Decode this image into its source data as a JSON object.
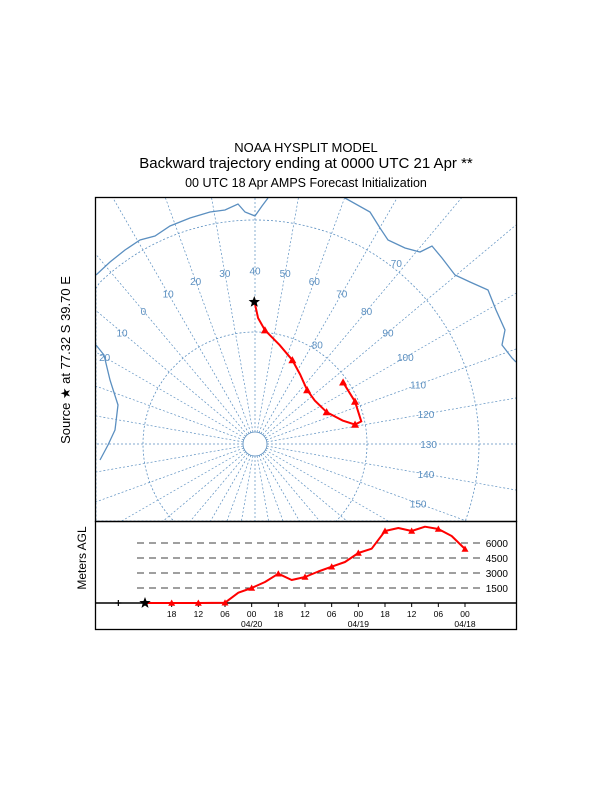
{
  "title": {
    "line1": "NOAA HYSPLIT MODEL",
    "line2": "Backward trajectory ending at 0000 UTC 21 Apr **",
    "line3": "00 UTC 18 Apr    AMPS  Forecast Initialization"
  },
  "source_label": "Source  ★  at    77.32 S   39.70 E",
  "chart_data": [
    {
      "type": "line",
      "title": "Trajectory map (south polar stereographic)",
      "colors": {
        "grid": "#5b8fc0",
        "trajectory": "#ff0000",
        "source": "#000000"
      },
      "meridian_labels": [
        {
          "lon": -20,
          "text": "20"
        },
        {
          "lon": -10,
          "text": "10"
        },
        {
          "lon": 0,
          "text": "0"
        },
        {
          "lon": 10,
          "text": "10"
        },
        {
          "lon": 20,
          "text": "20"
        },
        {
          "lon": 30,
          "text": "30"
        },
        {
          "lon": 40,
          "text": "40"
        },
        {
          "lon": 50,
          "text": "50"
        },
        {
          "lon": 60,
          "text": "60"
        },
        {
          "lon": 70,
          "text": "70"
        },
        {
          "lon": 80,
          "text": "80"
        },
        {
          "lon": 90,
          "text": "90"
        },
        {
          "lon": 100,
          "text": "100"
        },
        {
          "lon": 110,
          "text": "110"
        },
        {
          "lon": 120,
          "text": "120"
        },
        {
          "lon": 130,
          "text": "130"
        },
        {
          "lon": 140,
          "text": "140"
        },
        {
          "lon": 150,
          "text": "150"
        }
      ],
      "parallel_labels": [
        {
          "lat": -70,
          "text": "70"
        },
        {
          "lat": -80,
          "text": "80"
        }
      ],
      "source": {
        "lat": -77.32,
        "lon": 39.7
      },
      "trajectory": [
        {
          "lat": -77.1,
          "lon": 39.6
        },
        {
          "lat": -78.75,
          "lon": 41.4
        },
        {
          "lat": -79.8,
          "lon": 45
        },
        {
          "lat": -80.9,
          "lon": 54
        },
        {
          "lat": -81.8,
          "lon": 64
        },
        {
          "lat": -82.6,
          "lon": 73
        },
        {
          "lat": -83.3,
          "lon": 84
        },
        {
          "lat": -83.4,
          "lon": 94
        },
        {
          "lat": -83.0,
          "lon": 106
        },
        {
          "lat": -81.9,
          "lon": 115
        },
        {
          "lat": -80.9,
          "lon": 119
        },
        {
          "lat": -80.3,
          "lon": 118
        },
        {
          "lat": -80.3,
          "lon": 107
        },
        {
          "lat": -80.4,
          "lon": 95
        }
      ]
    },
    {
      "type": "line",
      "ylabel": "Meters AGL",
      "y_ref_lines": [
        1500,
        3000,
        4500,
        6000
      ],
      "x_unit": "hours before 0000 UTC 21 Apr",
      "x_ticks": [
        {
          "h": 6,
          "label": "18",
          "date": ""
        },
        {
          "h": 12,
          "label": "12",
          "date": ""
        },
        {
          "h": 18,
          "label": "06",
          "date": ""
        },
        {
          "h": 24,
          "label": "00",
          "date": "04/20"
        },
        {
          "h": 30,
          "label": "18",
          "date": ""
        },
        {
          "h": 36,
          "label": "12",
          "date": ""
        },
        {
          "h": 42,
          "label": "06",
          "date": ""
        },
        {
          "h": 48,
          "label": "00",
          "date": "04/19"
        },
        {
          "h": 54,
          "label": "18",
          "date": ""
        },
        {
          "h": 60,
          "label": "12",
          "date": ""
        },
        {
          "h": 66,
          "label": "06",
          "date": ""
        },
        {
          "h": 72,
          "label": "00",
          "date": "04/18"
        }
      ],
      "series": [
        {
          "name": "trajectory height",
          "hours": [
            0,
            6,
            12,
            18,
            21,
            24,
            27,
            30,
            33,
            36,
            39,
            42,
            45,
            48,
            51,
            54,
            57,
            60,
            63,
            66,
            69,
            72
          ],
          "values": [
            0,
            0,
            0,
            30,
            1030,
            1500,
            2100,
            2930,
            2300,
            2600,
            3150,
            3630,
            4100,
            5000,
            5430,
            7200,
            7500,
            7200,
            7630,
            7400,
            6700,
            5400
          ]
        }
      ]
    }
  ]
}
